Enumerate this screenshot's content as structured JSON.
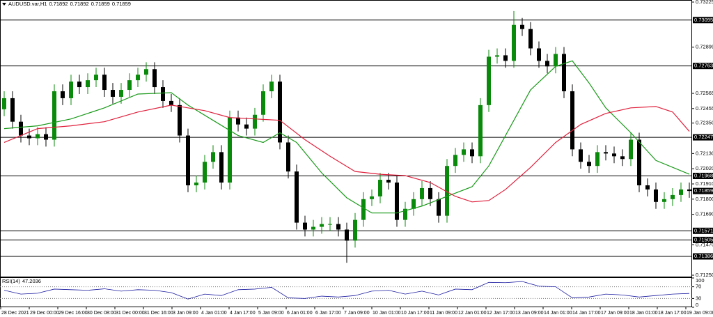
{
  "chart_data": {
    "type": "candlestick",
    "header": {
      "symbol": "AUDUSD.var,H1",
      "quote": [
        0.71892,
        0.71892,
        0.71859,
        0.71859
      ]
    },
    "up_color": "#0a8a0a",
    "down_color": "#000000",
    "candles": {
      "open": [
        0.7245,
        0.7253,
        0.7236,
        0.7226,
        0.7224,
        0.7227,
        0.7223,
        0.7258,
        0.7253,
        0.7265,
        0.7261,
        0.7266,
        0.727,
        0.7259,
        0.7254,
        0.7259,
        0.7266,
        0.727,
        0.7274,
        0.7261,
        0.7251,
        0.7248,
        0.7226,
        0.719,
        0.7192,
        0.7207,
        0.7214,
        0.7192,
        0.7239,
        0.7234,
        0.7231,
        0.7241,
        0.7258,
        0.7265,
        0.7221,
        0.72,
        0.7163,
        0.7158,
        0.716,
        0.7162,
        0.7162,
        0.7158,
        0.715,
        0.7165,
        0.718,
        0.7182,
        0.7194,
        0.7192,
        0.7165,
        0.7173,
        0.718,
        0.7188,
        0.718,
        0.7168,
        0.7204,
        0.7212,
        0.7216,
        0.7211,
        0.7248,
        0.7283,
        0.7284,
        0.728,
        0.7306,
        0.7303,
        0.7289,
        0.728,
        0.7276,
        0.7285,
        0.7258,
        0.7216,
        0.7207,
        0.7204,
        0.7214,
        0.7213,
        0.7211,
        0.7209,
        0.7223,
        0.719,
        0.7187,
        0.7178,
        0.718,
        0.7183,
        0.7187
      ],
      "high": [
        0.7258,
        0.7258,
        0.7241,
        0.7231,
        0.7232,
        0.7232,
        0.7263,
        0.7263,
        0.727,
        0.727,
        0.7271,
        0.7275,
        0.7275,
        0.7264,
        0.7264,
        0.7271,
        0.7275,
        0.7279,
        0.7279,
        0.7266,
        0.7256,
        0.7253,
        0.7231,
        0.7197,
        0.7212,
        0.7219,
        0.7219,
        0.7244,
        0.7244,
        0.7239,
        0.7246,
        0.7263,
        0.727,
        0.727,
        0.7226,
        0.7205,
        0.7168,
        0.7165,
        0.7167,
        0.7167,
        0.7167,
        0.7163,
        0.717,
        0.7185,
        0.7187,
        0.7199,
        0.7199,
        0.7197,
        0.7178,
        0.7185,
        0.7193,
        0.7193,
        0.7185,
        0.7209,
        0.7217,
        0.7221,
        0.7221,
        0.7253,
        0.7288,
        0.7289,
        0.7289,
        0.7316,
        0.7311,
        0.7308,
        0.7294,
        0.7285,
        0.729,
        0.729,
        0.7263,
        0.7221,
        0.7212,
        0.7219,
        0.7219,
        0.7218,
        0.7216,
        0.7228,
        0.7228,
        0.7195,
        0.7192,
        0.7185,
        0.7188,
        0.7192,
        0.7192
      ],
      "low": [
        0.724,
        0.7231,
        0.7221,
        0.7219,
        0.7219,
        0.7218,
        0.7218,
        0.7248,
        0.7248,
        0.7256,
        0.7256,
        0.7261,
        0.7254,
        0.7249,
        0.7249,
        0.7254,
        0.7261,
        0.7265,
        0.7256,
        0.7246,
        0.7243,
        0.7221,
        0.7185,
        0.7185,
        0.7187,
        0.7202,
        0.7187,
        0.7187,
        0.7229,
        0.7226,
        0.7226,
        0.7236,
        0.7253,
        0.7216,
        0.7195,
        0.7158,
        0.7153,
        0.7153,
        0.7155,
        0.7157,
        0.7153,
        0.7134,
        0.7145,
        0.716,
        0.7175,
        0.7177,
        0.7187,
        0.716,
        0.716,
        0.7168,
        0.7175,
        0.7175,
        0.7163,
        0.7163,
        0.7199,
        0.7207,
        0.7206,
        0.7206,
        0.7243,
        0.7278,
        0.7275,
        0.7275,
        0.7298,
        0.7284,
        0.7275,
        0.7271,
        0.7271,
        0.7253,
        0.7211,
        0.7202,
        0.7199,
        0.7199,
        0.7208,
        0.7206,
        0.7204,
        0.7204,
        0.7185,
        0.7182,
        0.7173,
        0.7173,
        0.7175,
        0.7178,
        0.7181
      ],
      "close": [
        0.7253,
        0.7236,
        0.7226,
        0.7224,
        0.7227,
        0.7223,
        0.7258,
        0.7253,
        0.7265,
        0.7261,
        0.7266,
        0.727,
        0.7259,
        0.7254,
        0.7259,
        0.7266,
        0.727,
        0.7274,
        0.7261,
        0.7251,
        0.7248,
        0.7226,
        0.719,
        0.7192,
        0.7207,
        0.7214,
        0.7192,
        0.7239,
        0.7234,
        0.7231,
        0.7241,
        0.7258,
        0.7265,
        0.7221,
        0.72,
        0.7163,
        0.7158,
        0.716,
        0.7162,
        0.7162,
        0.7158,
        0.715,
        0.7165,
        0.718,
        0.7182,
        0.7194,
        0.7192,
        0.7165,
        0.7173,
        0.718,
        0.7188,
        0.718,
        0.7168,
        0.7204,
        0.7212,
        0.7216,
        0.7211,
        0.7248,
        0.7283,
        0.7284,
        0.728,
        0.7306,
        0.7303,
        0.7289,
        0.728,
        0.7276,
        0.7285,
        0.7258,
        0.7216,
        0.7207,
        0.7204,
        0.7214,
        0.7213,
        0.7211,
        0.7209,
        0.7223,
        0.719,
        0.7187,
        0.7178,
        0.718,
        0.7183,
        0.7187,
        0.71859
      ]
    },
    "moving_averages": [
      {
        "color": "#1a9a1a",
        "x": [
          0,
          4,
          8,
          12,
          16,
          20,
          22,
          25,
          28,
          31,
          33,
          35,
          38,
          41,
          44,
          47,
          50,
          53,
          56,
          58,
          60,
          63,
          66,
          68,
          70,
          72,
          75,
          78,
          82
        ],
        "values": [
          0.7231,
          0.7233,
          0.7238,
          0.7246,
          0.7256,
          0.7257,
          0.7248,
          0.7237,
          0.7226,
          0.7221,
          0.7228,
          0.7221,
          0.7199,
          0.7181,
          0.717,
          0.717,
          0.7175,
          0.7182,
          0.7189,
          0.7204,
          0.7226,
          0.7259,
          0.7276,
          0.728,
          0.7264,
          0.7246,
          0.7228,
          0.7208,
          0.7198
        ]
      },
      {
        "color": "#e0203c",
        "x": [
          0,
          4,
          8,
          12,
          16,
          20,
          24,
          27,
          30,
          33,
          36,
          39,
          42,
          45,
          48,
          51,
          54,
          56,
          58,
          60,
          63,
          66,
          69,
          72,
          75,
          78,
          80,
          82
        ],
        "values": [
          0.7221,
          0.7231,
          0.7233,
          0.7236,
          0.7243,
          0.7248,
          0.7244,
          0.7239,
          0.7238,
          0.7237,
          0.7223,
          0.7211,
          0.72,
          0.7198,
          0.7197,
          0.7192,
          0.7182,
          0.7178,
          0.7179,
          0.7187,
          0.7203,
          0.7221,
          0.7234,
          0.7242,
          0.7246,
          0.7247,
          0.7243,
          0.7229
        ]
      }
    ],
    "levels": [
      0.73095,
      0.72763,
      0.72247,
      0.71968,
      0.71571,
      0.71505,
      0.71386
    ],
    "ylim": [
      0.7124,
      0.7324
    ],
    "yticks": [
      0.73225,
      0.72899,
      0.72565,
      0.72455,
      {
        "value": 0.7235,
        "label": "0.72350"
      },
      {
        "value": 0.7213,
        "label": "0.72130"
      },
      {
        "value": 0.7202,
        "label": "0.72020"
      },
      {
        "value": 0.7191,
        "label": "0.71910"
      },
      {
        "value": 0.718,
        "label": "0.71800"
      },
      {
        "value": 0.7169,
        "label": "0.71690"
      },
      {
        "value": 0.7147,
        "label": "0.71470"
      },
      {
        "value": 0.7125,
        "label": "0.71250"
      }
    ],
    "rsi": {
      "label": "RSI(14)",
      "color": "#1a1aa0",
      "x": [
        0,
        2,
        4,
        6,
        8,
        10,
        12,
        14,
        16,
        18,
        20,
        22,
        24,
        26,
        28,
        30,
        32,
        34,
        36,
        38,
        40,
        42,
        44,
        46,
        48,
        50,
        52,
        54,
        56,
        58,
        60,
        62,
        64,
        66,
        68,
        70,
        72,
        74,
        76,
        78,
        80,
        82
      ],
      "values": [
        58,
        45,
        48,
        62,
        60,
        58,
        63,
        55,
        60,
        58,
        50,
        28,
        45,
        40,
        60,
        62,
        68,
        32,
        30,
        38,
        35,
        40,
        55,
        58,
        45,
        55,
        42,
        62,
        60,
        85,
        84,
        88,
        72,
        70,
        32,
        35,
        45,
        42,
        35,
        40,
        45,
        47.2036
      ],
      "ylim": [
        0,
        100
      ],
      "yticks": [
        100,
        70,
        30,
        0
      ],
      "levels": [
        70,
        30
      ]
    },
    "categories": [
      "28 Dec 2021",
      "29 Dec 00:00",
      "29 Dec 16:00",
      "30 Dec 08:00",
      "31 Dec 00:00",
      "31 Dec 16:00",
      "3 Jan 09:00",
      "4 Jan 01:00",
      "4 Jan 17:00",
      "5 Jan 09:00",
      "6 Jan 01:00",
      "6 Jan 17:00",
      "7 Jan 09:00",
      "10 Jan 01:00",
      "10 Jan 17:00",
      "11 Jan 09:00",
      "12 Jan 01:00",
      "12 Jan 17:00",
      "13 Jan 09:00",
      "14 Jan 01:00",
      "14 Jan 17:00",
      "17 Jan 09:00",
      "18 Jan 01:00",
      "18 Jan 17:00",
      "19 Jan 09:00"
    ]
  }
}
